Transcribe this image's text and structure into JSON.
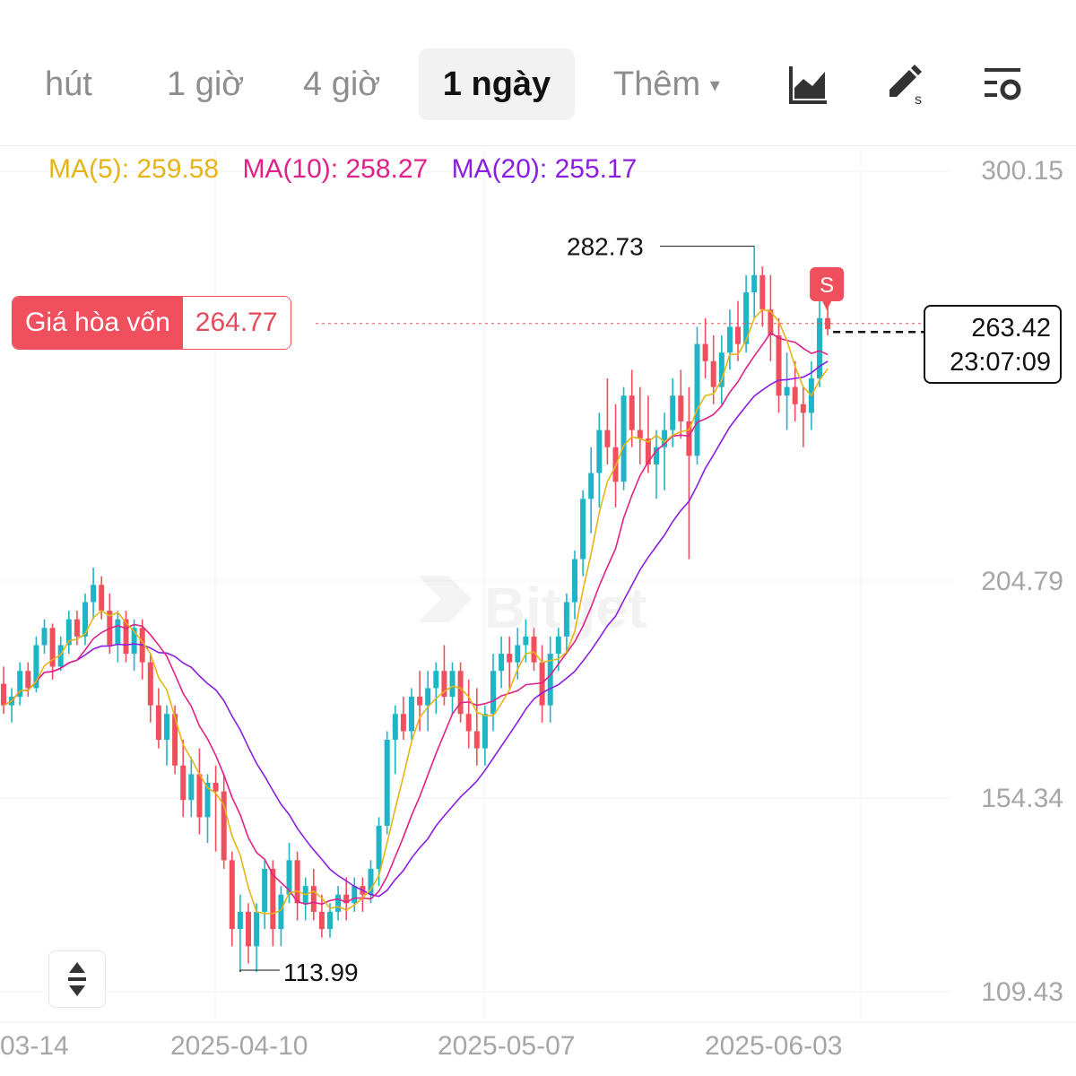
{
  "toolbar": {
    "tabs": [
      {
        "label": "hút",
        "selected": false
      },
      {
        "label": "1 giờ",
        "selected": false
      },
      {
        "label": "4 giờ",
        "selected": false
      },
      {
        "label": "1 ngày",
        "selected": true
      },
      {
        "label": "Thêm",
        "selected": false
      }
    ],
    "icons": [
      "chart-type-icon",
      "draw-tool-icon",
      "indicator-settings-icon"
    ]
  },
  "indicators": {
    "ma5": {
      "label": "MA(5): 259.58",
      "color": "#e7b415"
    },
    "ma10": {
      "label": "MA(10): 258.27",
      "color": "#e0218a"
    },
    "ma20": {
      "label": "MA(20): 255.17",
      "color": "#8a1de0"
    }
  },
  "price_axis": [
    "300.15",
    "204.79",
    "154.34",
    "109.43"
  ],
  "date_axis": [
    "03-14",
    "2025-04-10",
    "2025-05-07",
    "2025-06-03"
  ],
  "breakeven": {
    "label": "Giá hòa vốn",
    "value": "264.77"
  },
  "current": {
    "price": "263.42",
    "countdown": "23:07:09"
  },
  "markers": {
    "high": "282.73",
    "low": "113.99",
    "signal": "S"
  },
  "colors": {
    "up": "#1fb5c7",
    "down": "#f0505e"
  },
  "chart_data": {
    "type": "candlestick",
    "interval": "1 ngày",
    "y_ticks": [
      300.15,
      204.79,
      154.34,
      109.43
    ],
    "x_ticks": [
      "2025-04-10",
      "2025-05-07",
      "2025-06-03"
    ],
    "high_label": 282.73,
    "low_label": 113.99,
    "breakeven": 264.77,
    "last_price": 263.42,
    "moving_averages": [
      {
        "name": "MA(5)",
        "last": 259.58
      },
      {
        "name": "MA(10)",
        "last": 258.27
      },
      {
        "name": "MA(20)",
        "last": 255.17
      }
    ],
    "candles": [
      [
        181,
        185,
        174,
        176
      ],
      [
        176,
        180,
        172,
        178
      ],
      [
        178,
        186,
        176,
        184
      ],
      [
        184,
        186,
        178,
        180
      ],
      [
        180,
        192,
        179,
        190
      ],
      [
        190,
        196,
        188,
        194
      ],
      [
        194,
        195,
        182,
        185
      ],
      [
        185,
        192,
        184,
        190
      ],
      [
        190,
        198,
        188,
        196
      ],
      [
        196,
        198,
        190,
        192
      ],
      [
        192,
        202,
        190,
        200
      ],
      [
        200,
        208,
        196,
        204
      ],
      [
        204,
        206,
        196,
        198
      ],
      [
        198,
        202,
        188,
        190
      ],
      [
        190,
        198,
        186,
        196
      ],
      [
        196,
        198,
        186,
        188
      ],
      [
        188,
        196,
        184,
        194
      ],
      [
        194,
        196,
        182,
        186
      ],
      [
        186,
        188,
        172,
        176
      ],
      [
        176,
        180,
        166,
        168
      ],
      [
        168,
        176,
        162,
        174
      ],
      [
        174,
        176,
        160,
        162
      ],
      [
        162,
        168,
        150,
        154
      ],
      [
        154,
        164,
        150,
        160
      ],
      [
        160,
        166,
        146,
        150
      ],
      [
        150,
        160,
        144,
        158
      ],
      [
        158,
        162,
        142,
        156
      ],
      [
        156,
        160,
        138,
        140
      ],
      [
        140,
        142,
        120,
        124
      ],
      [
        124,
        132,
        114,
        128
      ],
      [
        128,
        130,
        116,
        120
      ],
      [
        120,
        130,
        114,
        128
      ],
      [
        128,
        140,
        124,
        138
      ],
      [
        138,
        140,
        120,
        124
      ],
      [
        124,
        134,
        120,
        132
      ],
      [
        132,
        144,
        130,
        140
      ],
      [
        140,
        142,
        126,
        130
      ],
      [
        130,
        136,
        126,
        134
      ],
      [
        134,
        138,
        126,
        128
      ],
      [
        128,
        132,
        122,
        124
      ],
      [
        124,
        130,
        122,
        128
      ],
      [
        128,
        134,
        126,
        132
      ],
      [
        132,
        136,
        126,
        130
      ],
      [
        130,
        136,
        128,
        134
      ],
      [
        134,
        136,
        128,
        132
      ],
      [
        132,
        140,
        130,
        138
      ],
      [
        138,
        150,
        134,
        148
      ],
      [
        148,
        170,
        146,
        168
      ],
      [
        168,
        176,
        160,
        174
      ],
      [
        174,
        178,
        168,
        170
      ],
      [
        170,
        180,
        168,
        178
      ],
      [
        178,
        184,
        170,
        176
      ],
      [
        176,
        184,
        170,
        180
      ],
      [
        180,
        186,
        174,
        184
      ],
      [
        184,
        190,
        176,
        178
      ],
      [
        178,
        186,
        174,
        184
      ],
      [
        184,
        186,
        172,
        174
      ],
      [
        174,
        182,
        166,
        170
      ],
      [
        170,
        180,
        162,
        166
      ],
      [
        166,
        176,
        162,
        174
      ],
      [
        174,
        188,
        170,
        184
      ],
      [
        184,
        192,
        180,
        188
      ],
      [
        188,
        192,
        180,
        186
      ],
      [
        186,
        194,
        182,
        190
      ],
      [
        190,
        196,
        186,
        192
      ],
      [
        192,
        194,
        184,
        186
      ],
      [
        186,
        190,
        172,
        176
      ],
      [
        176,
        192,
        172,
        188
      ],
      [
        188,
        194,
        184,
        192
      ],
      [
        192,
        202,
        188,
        200
      ],
      [
        200,
        212,
        196,
        210
      ],
      [
        210,
        226,
        206,
        224
      ],
      [
        224,
        236,
        216,
        230
      ],
      [
        230,
        244,
        222,
        240
      ],
      [
        240,
        252,
        232,
        236
      ],
      [
        236,
        246,
        222,
        228
      ],
      [
        228,
        250,
        226,
        248
      ],
      [
        248,
        254,
        236,
        240
      ],
      [
        240,
        250,
        232,
        238
      ],
      [
        238,
        248,
        230,
        232
      ],
      [
        232,
        240,
        224,
        236
      ],
      [
        236,
        244,
        226,
        240
      ],
      [
        240,
        252,
        236,
        248
      ],
      [
        248,
        254,
        238,
        242
      ],
      [
        242,
        250,
        210,
        234
      ],
      [
        234,
        264,
        232,
        260
      ],
      [
        260,
        266,
        252,
        256
      ],
      [
        256,
        262,
        246,
        250
      ],
      [
        250,
        262,
        246,
        258
      ],
      [
        258,
        268,
        254,
        264
      ],
      [
        264,
        270,
        256,
        260
      ],
      [
        260,
        276,
        258,
        272
      ],
      [
        272,
        282.73,
        266,
        276
      ],
      [
        276,
        278,
        264,
        268
      ],
      [
        268,
        276,
        256,
        262
      ],
      [
        262,
        266,
        244,
        248
      ],
      [
        248,
        258,
        240,
        250
      ],
      [
        250,
        256,
        242,
        246
      ],
      [
        246,
        250,
        236,
        244
      ],
      [
        244,
        256,
        240,
        252
      ],
      [
        252,
        270,
        250,
        266
      ],
      [
        266,
        270,
        262,
        263.42
      ]
    ]
  }
}
